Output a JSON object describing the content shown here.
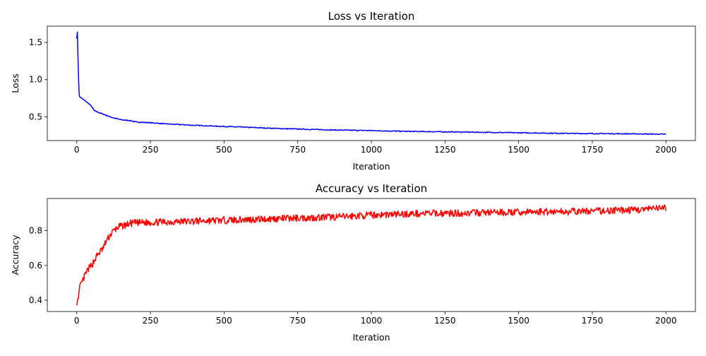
{
  "chart_data": [
    {
      "type": "line",
      "title": "Loss vs Iteration",
      "xlabel": "Iteration",
      "ylabel": "Loss",
      "xlim": [
        -100,
        2100
      ],
      "ylim": [
        0.18,
        1.72
      ],
      "xticks": [
        0,
        250,
        500,
        750,
        1000,
        1250,
        1500,
        1750,
        2000
      ],
      "yticks": [
        0.5,
        1.0,
        1.5
      ],
      "ytick_labels": [
        "0.5",
        "1.0",
        "1.5"
      ],
      "grid": false,
      "color": "#0000ff",
      "noise": 0.006,
      "x": [
        0,
        2,
        5,
        8,
        10,
        20,
        30,
        40,
        50,
        60,
        80,
        100,
        120,
        150,
        180,
        200,
        250,
        300,
        400,
        500,
        600,
        700,
        800,
        900,
        1000,
        1100,
        1200,
        1300,
        1400,
        1500,
        1600,
        1700,
        1800,
        1900,
        2000
      ],
      "values": [
        1.55,
        1.64,
        1.17,
        0.8,
        0.77,
        0.74,
        0.71,
        0.68,
        0.64,
        0.58,
        0.55,
        0.52,
        0.49,
        0.46,
        0.45,
        0.43,
        0.42,
        0.405,
        0.385,
        0.37,
        0.355,
        0.34,
        0.33,
        0.32,
        0.315,
        0.305,
        0.3,
        0.295,
        0.29,
        0.285,
        0.28,
        0.275,
        0.273,
        0.27,
        0.265
      ]
    },
    {
      "type": "line",
      "title": "Accuracy vs Iteration",
      "xlabel": "Iteration",
      "ylabel": "Accuracy",
      "xlim": [
        -100,
        2100
      ],
      "ylim": [
        0.335,
        0.985
      ],
      "xticks": [
        0,
        250,
        500,
        750,
        1000,
        1250,
        1500,
        1750,
        2000
      ],
      "yticks": [
        0.4,
        0.6,
        0.8
      ],
      "ytick_labels": [
        "0.4",
        "0.6",
        "0.8"
      ],
      "grid": false,
      "color": "#ff0000",
      "noise": 0.02,
      "x": [
        0,
        5,
        10,
        20,
        30,
        40,
        50,
        60,
        70,
        80,
        90,
        100,
        120,
        140,
        160,
        180,
        200,
        300,
        400,
        500,
        600,
        700,
        800,
        900,
        1000,
        1100,
        1200,
        1300,
        1400,
        1500,
        1600,
        1700,
        1800,
        1900,
        2000
      ],
      "values": [
        0.37,
        0.42,
        0.47,
        0.51,
        0.55,
        0.58,
        0.6,
        0.63,
        0.66,
        0.68,
        0.7,
        0.74,
        0.79,
        0.82,
        0.83,
        0.84,
        0.845,
        0.85,
        0.855,
        0.86,
        0.865,
        0.87,
        0.875,
        0.88,
        0.89,
        0.895,
        0.9,
        0.9,
        0.905,
        0.905,
        0.91,
        0.91,
        0.915,
        0.92,
        0.93
      ]
    }
  ]
}
